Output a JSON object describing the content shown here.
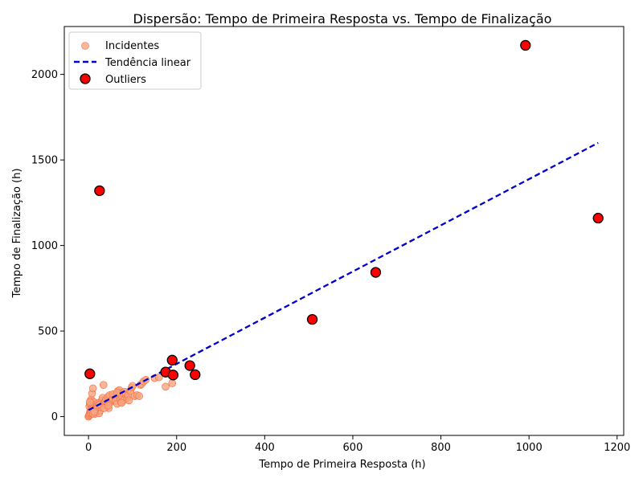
{
  "chart_data": {
    "type": "scatter",
    "title": "Dispersão: Tempo de Primeira Resposta vs. Tempo de Finalização",
    "xlabel": "Tempo de Primeira Resposta (h)",
    "ylabel": "Tempo de Finalização (h)",
    "xlim": [
      -55,
      1215
    ],
    "ylim": [
      -110,
      2280
    ],
    "xticks": [
      0,
      200,
      400,
      600,
      800,
      1000,
      1200
    ],
    "yticks": [
      0,
      500,
      1000,
      1500,
      2000
    ],
    "grid": false,
    "legend_position": "top-left",
    "series": [
      {
        "name": "Incidentes",
        "color": "#f4a582",
        "edge": "#fc6a3a",
        "points": [
          [
            0,
            0
          ],
          [
            1,
            5
          ],
          [
            2,
            12
          ],
          [
            3,
            20
          ],
          [
            4,
            30
          ],
          [
            5,
            45
          ],
          [
            2,
            60
          ],
          [
            3,
            75
          ],
          [
            4,
            90
          ],
          [
            6,
            100
          ],
          [
            8,
            135
          ],
          [
            10,
            165
          ],
          [
            5,
            25
          ],
          [
            7,
            40
          ],
          [
            9,
            55
          ],
          [
            11,
            70
          ],
          [
            12,
            85
          ],
          [
            14,
            15
          ],
          [
            16,
            30
          ],
          [
            18,
            50
          ],
          [
            20,
            65
          ],
          [
            22,
            80
          ],
          [
            24,
            20
          ],
          [
            26,
            35
          ],
          [
            28,
            55
          ],
          [
            30,
            95
          ],
          [
            32,
            110
          ],
          [
            34,
            185
          ],
          [
            36,
            75
          ],
          [
            38,
            90
          ],
          [
            40,
            100
          ],
          [
            42,
            60
          ],
          [
            44,
            115
          ],
          [
            46,
            50
          ],
          [
            48,
            125
          ],
          [
            50,
            85
          ],
          [
            52,
            95
          ],
          [
            55,
            105
          ],
          [
            58,
            130
          ],
          [
            60,
            115
          ],
          [
            62,
            90
          ],
          [
            65,
            75
          ],
          [
            67,
            150
          ],
          [
            70,
            155
          ],
          [
            72,
            100
          ],
          [
            74,
            85
          ],
          [
            76,
            120
          ],
          [
            78,
            140
          ],
          [
            80,
            95
          ],
          [
            82,
            145
          ],
          [
            85,
            130
          ],
          [
            88,
            110
          ],
          [
            90,
            125
          ],
          [
            92,
            95
          ],
          [
            95,
            150
          ],
          [
            98,
            170
          ],
          [
            100,
            180
          ],
          [
            105,
            120
          ],
          [
            110,
            125
          ],
          [
            115,
            120
          ],
          [
            118,
            185
          ],
          [
            120,
            190
          ],
          [
            125,
            205
          ],
          [
            130,
            215
          ],
          [
            150,
            225
          ],
          [
            160,
            230
          ],
          [
            175,
            175
          ],
          [
            180,
            260
          ],
          [
            190,
            195
          ],
          [
            15,
            40
          ],
          [
            25,
            70
          ],
          [
            35,
            50
          ],
          [
            45,
            65
          ],
          [
            55,
            130
          ],
          [
            65,
            140
          ],
          [
            75,
            80
          ],
          [
            3,
            85
          ],
          [
            6,
            35
          ],
          [
            10,
            18
          ],
          [
            13,
            28
          ]
        ]
      },
      {
        "name": "Tendência linear",
        "color": "#0000cc",
        "points": [
          [
            0,
            38
          ],
          [
            1157,
            1600
          ]
        ]
      },
      {
        "name": "Outliers",
        "color": "#ff0000",
        "edge": "#000000",
        "points": [
          [
            992,
            2170
          ],
          [
            25,
            1320
          ],
          [
            1157,
            1160
          ],
          [
            652,
            843
          ],
          [
            508,
            568
          ],
          [
            3,
            250
          ],
          [
            175,
            260
          ],
          [
            190,
            330
          ],
          [
            230,
            298
          ],
          [
            192,
            243
          ],
          [
            242,
            245
          ]
        ]
      }
    ]
  }
}
